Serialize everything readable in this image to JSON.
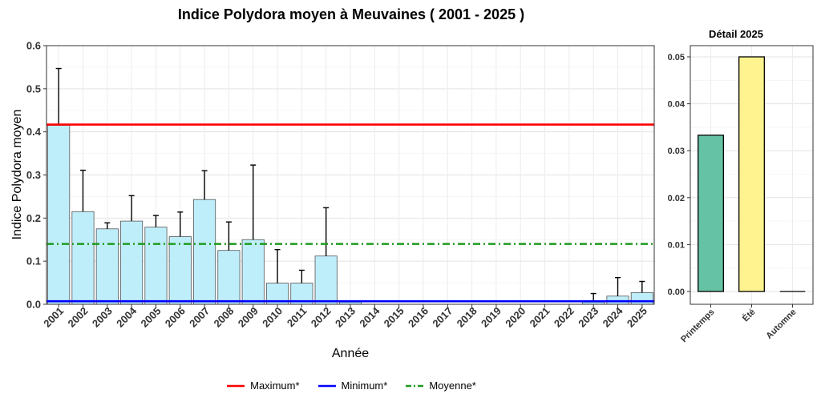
{
  "chart_data": [
    {
      "type": "bar",
      "title": "Indice Polydora moyen à Meuvaines ( 2001 - 2025 )",
      "xlabel": "Année",
      "ylabel": "Indice Polydora moyen",
      "ylim": [
        0,
        0.6
      ],
      "yticks": [
        "0.0",
        "0.1",
        "0.2",
        "0.3",
        "0.4",
        "0.5",
        "0.6"
      ],
      "grid": true,
      "categories": [
        "2001",
        "2002",
        "2003",
        "2004",
        "2005",
        "2006",
        "2007",
        "2008",
        "2009",
        "2010",
        "2011",
        "2012",
        "2013",
        "2014",
        "2015",
        "2016",
        "2017",
        "2018",
        "2019",
        "2020",
        "2021",
        "2022",
        "2023",
        "2024",
        "2025"
      ],
      "values": [
        0.415,
        0.215,
        0.175,
        0.193,
        0.179,
        0.157,
        0.243,
        0.125,
        0.15,
        0.049,
        0.049,
        0.112,
        0.005,
        0,
        0,
        0,
        0,
        0,
        0,
        0,
        0,
        0,
        0.005,
        0.019,
        0.027
      ],
      "error_upper": [
        0.547,
        0.311,
        0.189,
        0.252,
        0.206,
        0.214,
        0.31,
        0.191,
        0.323,
        0.127,
        0.079,
        0.224,
        null,
        null,
        null,
        null,
        null,
        null,
        null,
        null,
        null,
        null,
        0.025,
        0.062,
        0.053
      ],
      "bar_color": "#bfeefb",
      "bar_outline": "#555555",
      "reference_lines": [
        {
          "name": "Maximum*",
          "value": 0.417,
          "color": "#ff0000",
          "style": "solid"
        },
        {
          "name": "Minimum*",
          "value": 0.007,
          "color": "#0000ff",
          "style": "solid"
        },
        {
          "name": "Moyenne*",
          "value": 0.14,
          "color": "#1f9a1f",
          "style": "dashdot"
        }
      ],
      "legend_position": "bottom"
    },
    {
      "type": "bar",
      "title": "Détail 2025",
      "categories": [
        "Printemps",
        "Été",
        "Automne"
      ],
      "values": [
        0.0333,
        0.05,
        0
      ],
      "colors": [
        "#66c2a5",
        "#fff38f",
        "#ffffff"
      ],
      "ylim": [
        0,
        0.05
      ],
      "yticks": [
        "0.00",
        "0.01",
        "0.02",
        "0.03",
        "0.04",
        "0.05"
      ],
      "grid": true
    }
  ]
}
